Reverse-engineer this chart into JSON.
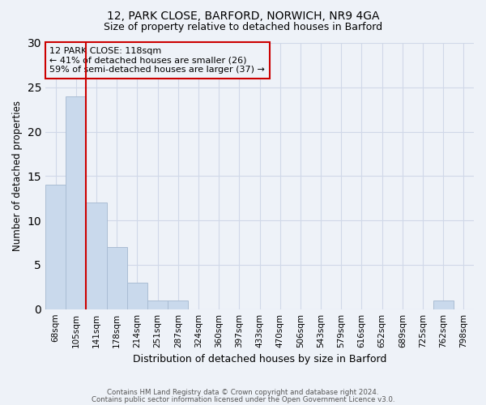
{
  "title1": "12, PARK CLOSE, BARFORD, NORWICH, NR9 4GA",
  "title2": "Size of property relative to detached houses in Barford",
  "xlabel": "Distribution of detached houses by size in Barford",
  "ylabel": "Number of detached properties",
  "bin_labels": [
    "68sqm",
    "105sqm",
    "141sqm",
    "178sqm",
    "214sqm",
    "251sqm",
    "287sqm",
    "324sqm",
    "360sqm",
    "397sqm",
    "433sqm",
    "470sqm",
    "506sqm",
    "543sqm",
    "579sqm",
    "616sqm",
    "652sqm",
    "689sqm",
    "725sqm",
    "762sqm",
    "798sqm"
  ],
  "bar_heights": [
    14,
    24,
    12,
    7,
    3,
    1,
    1,
    0,
    0,
    0,
    0,
    0,
    0,
    0,
    0,
    0,
    0,
    0,
    0,
    1,
    0
  ],
  "bar_color": "#c9d9ec",
  "bar_edge_color": "#aabdd4",
  "grid_color": "#d0d8e8",
  "background_color": "#eef2f8",
  "annotation_text": "12 PARK CLOSE: 118sqm\n← 41% of detached houses are smaller (26)\n59% of semi-detached houses are larger (37) →",
  "annotation_box_edge": "#cc0000",
  "vline_color": "#cc0000",
  "vline_position": 1.5,
  "ylim": [
    0,
    30
  ],
  "yticks": [
    0,
    5,
    10,
    15,
    20,
    25,
    30
  ],
  "footer1": "Contains HM Land Registry data © Crown copyright and database right 2024.",
  "footer2": "Contains public sector information licensed under the Open Government Licence v3.0."
}
